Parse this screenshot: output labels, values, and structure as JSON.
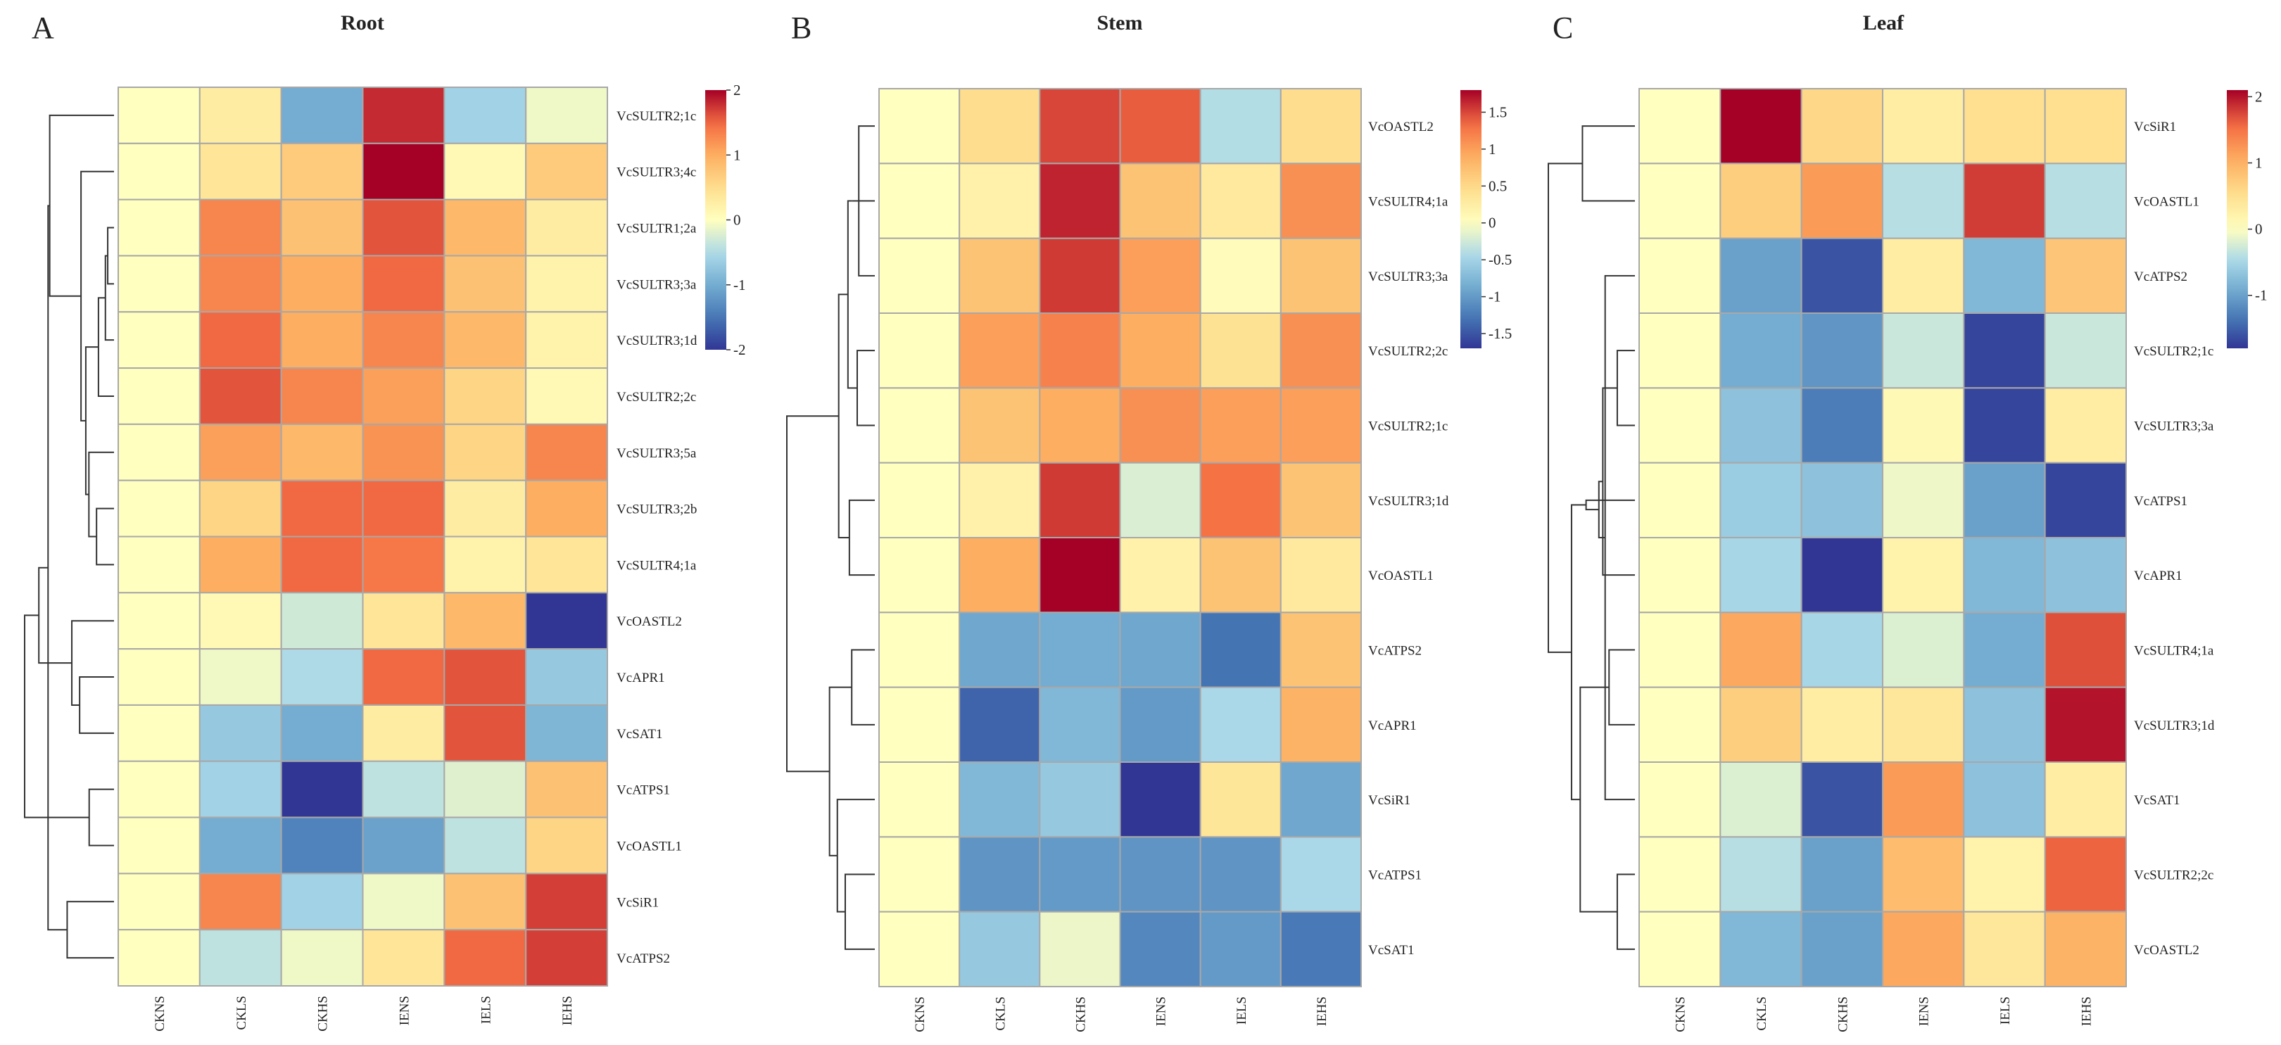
{
  "chart_data": [
    {
      "type": "heatmap",
      "panel_letter": "A",
      "title": "Root",
      "columns": [
        "CKNS",
        "CKLS",
        "CKHS",
        "IENS",
        "IELS",
        "IEHS"
      ],
      "rows": [
        "VcSULTR2;1c",
        "VcSULTR3;4c",
        "VcSULTR1;2a",
        "VcSULTR3;3a",
        "VcSULTR3;1d",
        "VcSULTR2;2c",
        "VcSULTR3;5a",
        "VcSULTR3;2b",
        "VcSULTR4;1a",
        "VcOASTL2",
        "VcAPR1",
        "VcSAT1",
        "VcATPS1",
        "VcOASTL1",
        "VcSiR1",
        "VcATPS2"
      ],
      "values": [
        [
          0,
          0.3,
          -1.0,
          1.8,
          -0.6,
          -0.1
        ],
        [
          0,
          0.4,
          0.7,
          2.0,
          0.1,
          0.7
        ],
        [
          0,
          1.3,
          0.8,
          1.6,
          0.9,
          0.3
        ],
        [
          0,
          1.3,
          1.0,
          1.5,
          0.8,
          0.2
        ],
        [
          0,
          1.5,
          1.0,
          1.3,
          0.9,
          0.2
        ],
        [
          0,
          1.6,
          1.3,
          1.1,
          0.6,
          0.1
        ],
        [
          0,
          1.1,
          0.9,
          1.2,
          0.6,
          1.3
        ],
        [
          0,
          0.6,
          1.5,
          1.5,
          0.3,
          1.0
        ],
        [
          0,
          1.0,
          1.5,
          1.4,
          0.2,
          0.4
        ],
        [
          0,
          0.1,
          -0.3,
          0.4,
          0.9,
          -2.0
        ],
        [
          0,
          -0.1,
          -0.5,
          1.5,
          1.6,
          -0.7
        ],
        [
          0,
          -0.7,
          -1.0,
          0.3,
          1.6,
          -0.9
        ],
        [
          0,
          -0.6,
          -2.0,
          -0.4,
          -0.2,
          0.8
        ],
        [
          0,
          -1.0,
          -1.4,
          -1.1,
          -0.4,
          0.6
        ],
        [
          0,
          1.3,
          -0.6,
          -0.1,
          0.8,
          1.7
        ],
        [
          0,
          -0.4,
          -0.1,
          0.4,
          1.5,
          1.7
        ]
      ],
      "scale": {
        "min": -2,
        "max": 2,
        "ticks": [
          "2",
          "1",
          "0",
          "-1",
          "-2"
        ],
        "tick_values": [
          2,
          1,
          0,
          -1,
          -2
        ]
      }
    },
    {
      "type": "heatmap",
      "panel_letter": "B",
      "title": "Stem",
      "columns": [
        "CKNS",
        "CKLS",
        "CKHS",
        "IENS",
        "IELS",
        "IEHS"
      ],
      "rows": [
        "VcOASTL2",
        "VcSULTR4;1a",
        "VcSULTR3;3a",
        "VcSULTR2;2c",
        "VcSULTR2;1c",
        "VcSULTR3;1d",
        "VcOASTL1",
        "VcATPS2",
        "VcAPR1",
        "VcSiR1",
        "VcATPS1",
        "VcSAT1"
      ],
      "values": [
        [
          0,
          0.45,
          1.5,
          1.4,
          -0.4,
          0.45
        ],
        [
          0,
          0.2,
          1.65,
          0.7,
          0.3,
          1.1
        ],
        [
          0,
          0.7,
          1.55,
          1.0,
          0.05,
          0.7
        ],
        [
          0,
          1.0,
          1.2,
          0.9,
          0.4,
          1.1
        ],
        [
          0,
          0.7,
          0.9,
          1.1,
          1.0,
          1.0
        ],
        [
          0,
          0.2,
          1.55,
          -0.2,
          1.3,
          0.7
        ],
        [
          0,
          0.9,
          1.8,
          0.2,
          0.7,
          0.3
        ],
        [
          0,
          -0.9,
          -0.85,
          -0.9,
          -1.3,
          0.7
        ],
        [
          0,
          -1.4,
          -0.75,
          -1.0,
          -0.45,
          0.85
        ],
        [
          0,
          -0.75,
          -0.6,
          -1.7,
          0.35,
          -0.9
        ],
        [
          0,
          -1.05,
          -1.0,
          -1.05,
          -1.05,
          -0.45
        ],
        [
          0,
          -0.6,
          -0.1,
          -1.15,
          -1.0,
          -1.25
        ]
      ],
      "scale": {
        "min": -1.7,
        "max": 1.8,
        "ticks": [
          "1.5",
          "1",
          "0.5",
          "0",
          "-0.5",
          "-1",
          "-1.5"
        ],
        "tick_values": [
          1.5,
          1,
          0.5,
          0,
          -0.5,
          -1,
          -1.5
        ]
      }
    },
    {
      "type": "heatmap",
      "panel_letter": "C",
      "title": "Leaf",
      "columns": [
        "CKNS",
        "CKLS",
        "CKHS",
        "IENS",
        "IELS",
        "IEHS"
      ],
      "rows": [
        "VcSiR1",
        "VcOASTL1",
        "VcATPS2",
        "VcSULTR2;1c",
        "VcSULTR3;3a",
        "VcATPS1",
        "VcAPR1",
        "VcSULTR4;1a",
        "VcSULTR3;1d",
        "VcSAT1",
        "VcSULTR2;2c",
        "VcOASTL2"
      ],
      "values": [
        [
          0,
          2.1,
          0.6,
          0.3,
          0.5,
          0.5
        ],
        [
          0,
          0.7,
          1.2,
          -0.4,
          1.8,
          -0.4
        ],
        [
          0,
          -1.0,
          -1.6,
          0.3,
          -0.8,
          0.8
        ],
        [
          0,
          -0.9,
          -1.1,
          -0.3,
          -1.7,
          -0.3
        ],
        [
          0,
          -0.7,
          -1.3,
          0.1,
          -1.7,
          0.3
        ],
        [
          0,
          -0.6,
          -0.7,
          -0.1,
          -1.0,
          -1.7
        ],
        [
          0,
          -0.5,
          -1.8,
          0.2,
          -0.8,
          -0.7
        ],
        [
          0,
          1.1,
          -0.5,
          -0.2,
          -0.9,
          1.7
        ],
        [
          0,
          0.7,
          0.3,
          0.4,
          -0.7,
          2.0
        ],
        [
          0,
          -0.2,
          -1.6,
          1.2,
          -0.7,
          0.3
        ],
        [
          0,
          -0.4,
          -1.0,
          0.9,
          0.2,
          1.6
        ],
        [
          0,
          -0.8,
          -1.0,
          1.1,
          0.4,
          1.0
        ]
      ],
      "scale": {
        "min": -1.8,
        "max": 2.1,
        "ticks": [
          "2",
          "1",
          "0",
          "-1"
        ],
        "tick_values": [
          2,
          1,
          0,
          -1
        ]
      }
    }
  ]
}
